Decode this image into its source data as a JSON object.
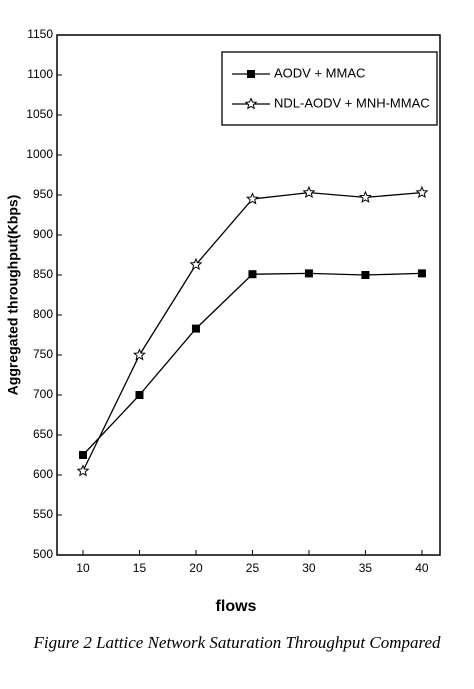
{
  "chart_data": {
    "type": "line",
    "x": [
      10,
      15,
      20,
      25,
      30,
      35,
      40
    ],
    "series": [
      {
        "name": "AODV + MMAC",
        "color": "#000000",
        "marker": "square",
        "values": [
          625,
          700,
          783,
          851,
          852,
          850,
          852
        ]
      },
      {
        "name": "NDL-AODV + MNH-MMAC",
        "color": "#000000",
        "marker": "star",
        "values": [
          605,
          750,
          863,
          945,
          953,
          947,
          953
        ]
      }
    ],
    "xlim": [
      7.7,
      41.6
    ],
    "xticks": [
      10,
      15,
      20,
      25,
      30,
      35,
      40
    ],
    "ylim": [
      500,
      1150
    ],
    "yticks": [
      500,
      550,
      600,
      650,
      700,
      750,
      800,
      850,
      900,
      950,
      1000,
      1050,
      1100,
      1150
    ],
    "xlabel": "flows",
    "ylabel": "Aggregated throughput(Kbps)",
    "legend": "upper right",
    "caption": "Figure 2 Lattice Network Saturation Throughput Compared"
  }
}
